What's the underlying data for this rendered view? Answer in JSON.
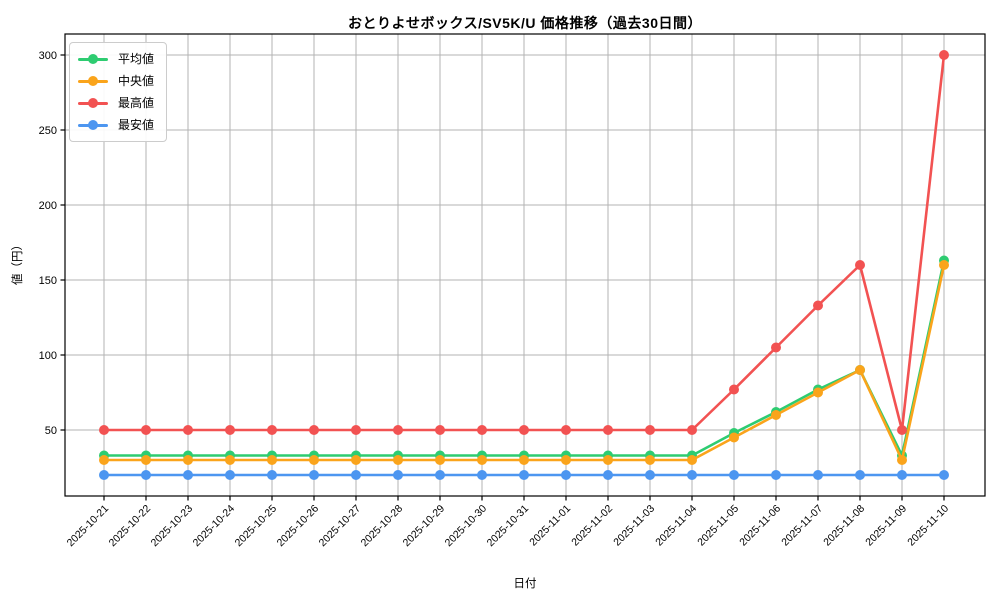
{
  "chart_data": {
    "type": "line",
    "title": "おとりよせボックス/SV5K/U 価格推移（過去30日間）",
    "xlabel": "日付",
    "ylabel": "値（円）",
    "x": [
      "2025-10-21",
      "2025-10-22",
      "2025-10-23",
      "2025-10-24",
      "2025-10-25",
      "2025-10-26",
      "2025-10-27",
      "2025-10-28",
      "2025-10-29",
      "2025-10-30",
      "2025-10-31",
      "2025-11-01",
      "2025-11-02",
      "2025-11-03",
      "2025-11-04",
      "2025-11-05",
      "2025-11-06",
      "2025-11-07",
      "2025-11-08",
      "2025-11-09",
      "2025-11-10"
    ],
    "series": [
      {
        "key": "average",
        "name": "平均値",
        "color": "#2ecc71",
        "values": [
          33,
          33,
          33,
          33,
          33,
          33,
          33,
          33,
          33,
          33,
          33,
          33,
          33,
          33,
          33,
          48,
          62,
          77,
          90,
          33,
          163
        ]
      },
      {
        "key": "median",
        "name": "中央値",
        "color": "#faa41b",
        "values": [
          30,
          30,
          30,
          30,
          30,
          30,
          30,
          30,
          30,
          30,
          30,
          30,
          30,
          30,
          30,
          45,
          60,
          75,
          90,
          30,
          160
        ]
      },
      {
        "key": "max",
        "name": "最高値",
        "color": "#f25252",
        "values": [
          50,
          50,
          50,
          50,
          50,
          50,
          50,
          50,
          50,
          50,
          50,
          50,
          50,
          50,
          50,
          77,
          105,
          133,
          160,
          50,
          300
        ]
      },
      {
        "key": "min",
        "name": "最安値",
        "color": "#4d96f0",
        "values": [
          20,
          20,
          20,
          20,
          20,
          20,
          20,
          20,
          20,
          20,
          20,
          20,
          20,
          20,
          20,
          20,
          20,
          20,
          20,
          20,
          20
        ]
      }
    ],
    "ylim": [
      6,
      314
    ],
    "yticks": [
      50,
      100,
      150,
      200,
      250,
      300
    ],
    "grid": true,
    "legend_position": "upper left",
    "grid_color": "#b3b3b3",
    "spine_color": "#000000"
  }
}
